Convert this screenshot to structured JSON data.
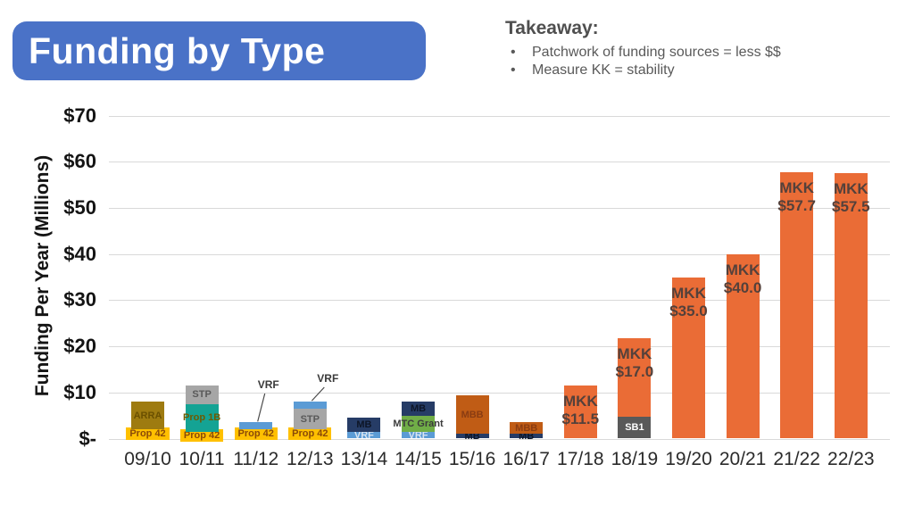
{
  "title": {
    "text": "Funding by Type",
    "bg_color": "#4a72c7",
    "text_color": "#ffffff"
  },
  "takeaway": {
    "heading": "Takeaway:",
    "bullets": [
      "Patchwork of funding sources = less $$",
      "Measure KK = stability"
    ]
  },
  "chart_data": {
    "type": "bar",
    "stacked": true,
    "title": "",
    "xlabel": "",
    "ylabel": "Funding Per Year (Millions)",
    "ylim": [
      0,
      70
    ],
    "grid": true,
    "gridline_color": "#d9d9d9",
    "ytick_values": [
      0,
      10,
      20,
      30,
      40,
      50,
      60,
      70
    ],
    "ytick_labels": [
      "$-",
      "$10",
      "$20",
      "$30",
      "$40",
      "$50",
      "$60",
      "$70"
    ],
    "categories": [
      "09/10",
      "10/11",
      "11/12",
      "12/13",
      "13/14",
      "14/15",
      "15/16",
      "16/17",
      "17/18",
      "18/19",
      "19/20",
      "20/21",
      "21/22",
      "22/23"
    ],
    "palette": {
      "Prop 42": {
        "color": "#FFC000",
        "text": "#8a4a08",
        "label_bg": true
      },
      "ARRA": {
        "color": "#9E7B10",
        "text": "#6b5000"
      },
      "Prop 1B": {
        "color": "#14A394",
        "text": "#6e5a00"
      },
      "STP": {
        "color": "#A6A6A6",
        "text": "#595959"
      },
      "VRF": {
        "color": "#5B9BD5",
        "text": "#d9e4f1"
      },
      "MB": {
        "color": "#263C66",
        "text": "#0d1526"
      },
      "MTC Grant": {
        "color": "#70AD47",
        "text": "#3b3b3b"
      },
      "MBB": {
        "color": "#C05C15",
        "text": "#8a3c12"
      },
      "SB1": {
        "color": "#595959",
        "text": "#ffffff"
      },
      "MKK": {
        "color": "#EA6C36",
        "text": "#54413b"
      }
    },
    "bars": [
      {
        "category": "09/10",
        "total": 8.0,
        "segments": [
          {
            "name": "Prop 42",
            "value": 2.0
          },
          {
            "name": "ARRA",
            "value": 6.0
          }
        ]
      },
      {
        "category": "10/11",
        "total": 11.5,
        "segments": [
          {
            "name": "Prop 42",
            "value": 1.5
          },
          {
            "name": "Prop 1B",
            "value": 6.0
          },
          {
            "name": "STP",
            "value": 4.0
          }
        ]
      },
      {
        "category": "11/12",
        "total": 3.5,
        "segments": [
          {
            "name": "Prop 42",
            "value": 2.0
          },
          {
            "name": "VRF",
            "value": 1.5,
            "show_label": false
          }
        ]
      },
      {
        "category": "12/13",
        "total": 8.0,
        "segments": [
          {
            "name": "Prop 42",
            "value": 2.0
          },
          {
            "name": "STP",
            "value": 4.5
          },
          {
            "name": "VRF",
            "value": 1.5,
            "show_label": false
          }
        ]
      },
      {
        "category": "13/14",
        "total": 4.5,
        "segments": [
          {
            "name": "VRF",
            "value": 1.5
          },
          {
            "name": "MB",
            "value": 3.0
          }
        ]
      },
      {
        "category": "14/15",
        "total": 8.0,
        "segments": [
          {
            "name": "VRF",
            "value": 1.5
          },
          {
            "name": "MTC Grant",
            "value": 3.5
          },
          {
            "name": "MB",
            "value": 3.0
          }
        ]
      },
      {
        "category": "15/16",
        "total": 9.3,
        "segments": [
          {
            "name": "MB",
            "value": 1.0
          },
          {
            "name": "MBB",
            "value": 8.3
          }
        ]
      },
      {
        "category": "16/17",
        "total": 3.5,
        "segments": [
          {
            "name": "MB",
            "value": 1.0
          },
          {
            "name": "MBB",
            "value": 2.5
          }
        ]
      },
      {
        "category": "17/18",
        "total": 11.5,
        "segments": [
          {
            "name": "MKK",
            "value": 11.5,
            "show_label": false
          }
        ],
        "value_label": [
          "MKK",
          "$11.5"
        ]
      },
      {
        "category": "18/19",
        "total": 21.8,
        "segments": [
          {
            "name": "SB1",
            "value": 4.8
          },
          {
            "name": "MKK",
            "value": 17.0,
            "show_label": false
          }
        ],
        "value_label": [
          "MKK",
          "$17.0"
        ]
      },
      {
        "category": "19/20",
        "total": 35.0,
        "segments": [
          {
            "name": "MKK",
            "value": 35.0,
            "show_label": false
          }
        ],
        "value_label": [
          "MKK",
          "$35.0"
        ]
      },
      {
        "category": "20/21",
        "total": 40.0,
        "segments": [
          {
            "name": "MKK",
            "value": 40.0,
            "show_label": false
          }
        ],
        "value_label": [
          "MKK",
          "$40.0"
        ]
      },
      {
        "category": "21/22",
        "total": 57.7,
        "segments": [
          {
            "name": "MKK",
            "value": 57.7,
            "show_label": false
          }
        ],
        "value_label": [
          "MKK",
          "$57.7"
        ]
      },
      {
        "category": "22/23",
        "total": 57.5,
        "segments": [
          {
            "name": "MKK",
            "value": 57.5,
            "show_label": false
          }
        ],
        "value_label": [
          "MKK",
          "$57.5"
        ]
      }
    ],
    "callouts": [
      {
        "bar_index": 2,
        "text": "VRF"
      },
      {
        "bar_index": 3,
        "text": "VRF"
      }
    ],
    "legend_position": "none"
  }
}
